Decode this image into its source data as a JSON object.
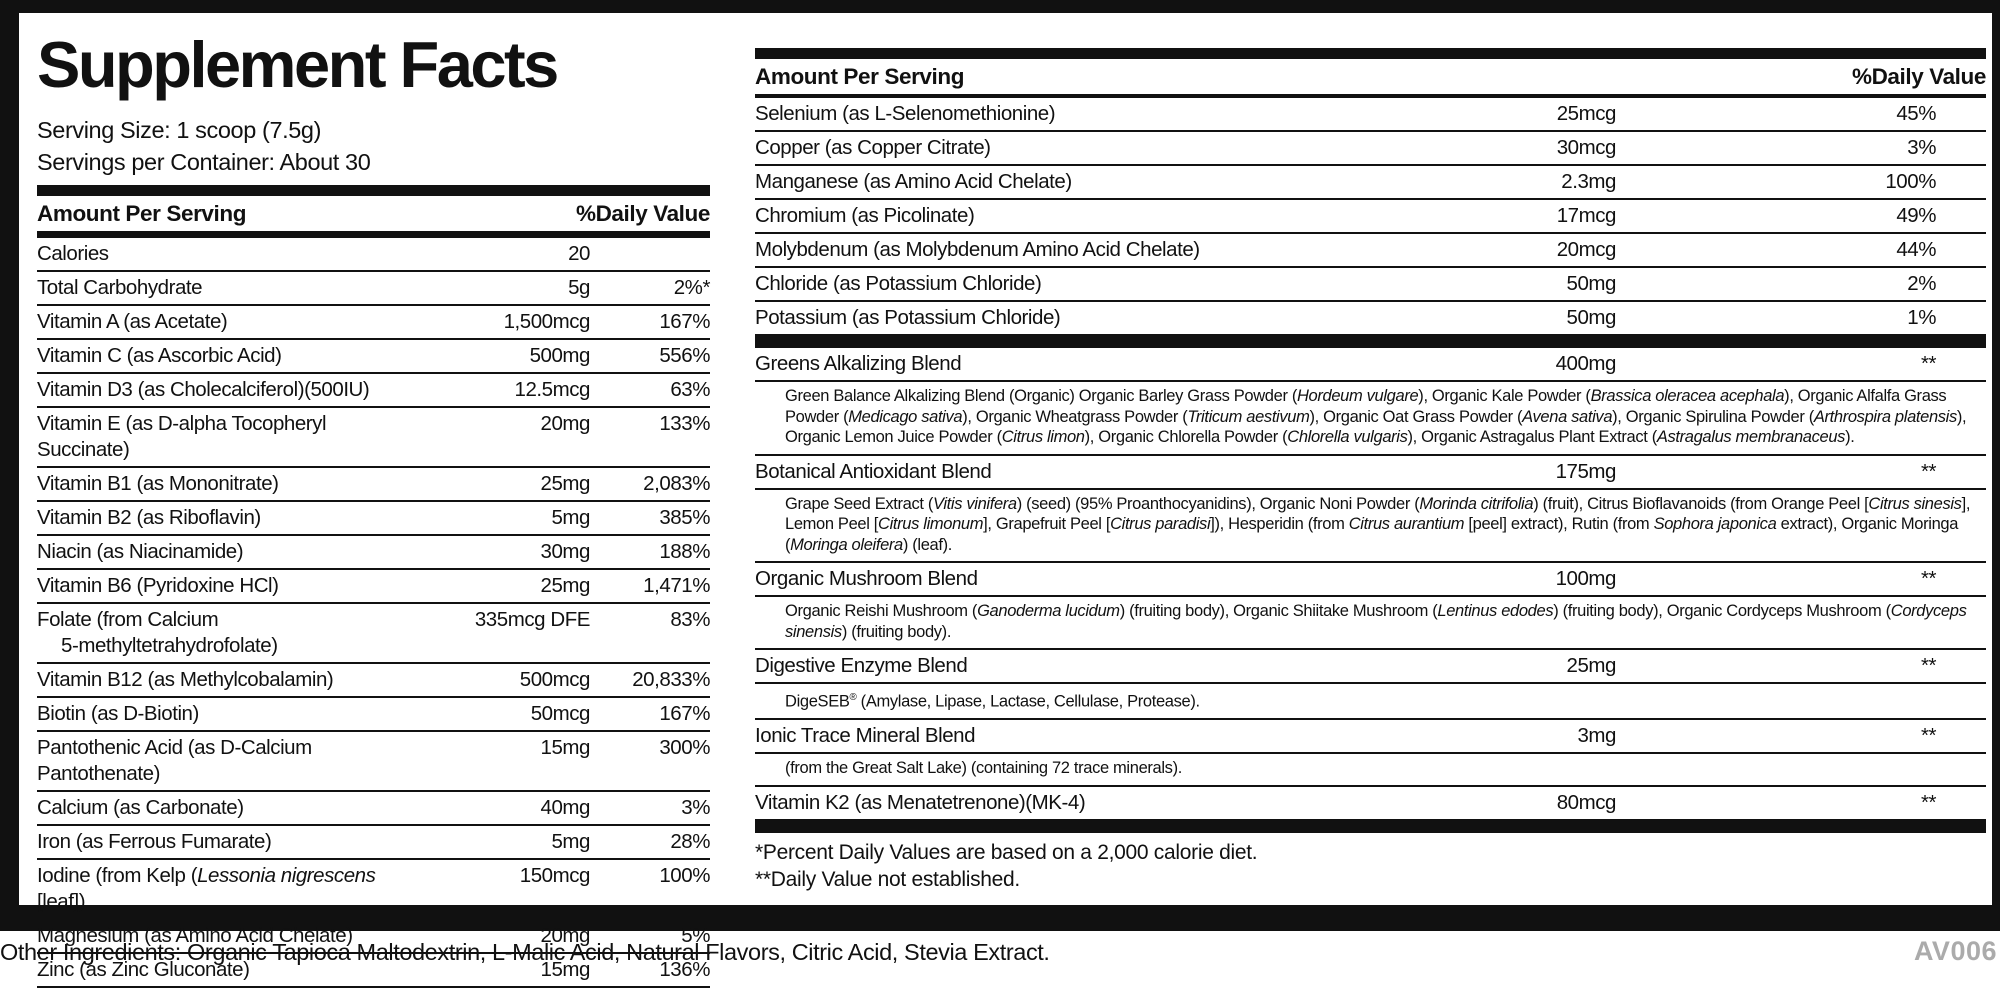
{
  "colors": {
    "ink": "#111111",
    "code_gray": "#8f8f8f",
    "background": "#ffffff"
  },
  "label": {
    "title": "Supplement Facts",
    "serving_size": "Serving Size: 1 scoop (7.5g)",
    "servings_per_container": "Servings per Container: About 30"
  },
  "table_headers": {
    "amount": "Amount Per Serving",
    "dv": "%Daily Value"
  },
  "left_table": {
    "rows": [
      {
        "name": "Calories",
        "amount": "20",
        "dv": ""
      },
      {
        "name": "Total Carbohydrate",
        "amount": "5g",
        "dv": "2%*"
      },
      {
        "name": "Vitamin A (as Acetate)",
        "amount": "1,500mcg",
        "dv": "167%"
      },
      {
        "name": "Vitamin C (as Ascorbic Acid)",
        "amount": "500mg",
        "dv": "556%"
      },
      {
        "name": "Vitamin D3 (as Cholecalciferol)(500IU)",
        "amount": "12.5mcg",
        "dv": "63%"
      },
      {
        "name": "Vitamin E (as D-alpha Tocopheryl Succinate)",
        "amount": "20mg",
        "dv": "133%"
      },
      {
        "name": "Vitamin B1 (as Mononitrate)",
        "amount": "25mg",
        "dv": "2,083%"
      },
      {
        "name": "Vitamin B2 (as Riboflavin)",
        "amount": "5mg",
        "dv": "385%"
      },
      {
        "name": "Niacin (as Niacinamide)",
        "amount": "30mg",
        "dv": "188%"
      },
      {
        "name": "Vitamin B6 (Pyridoxine HCl)",
        "amount": "25mg",
        "dv": "1,471%"
      },
      {
        "name": "Folate (from Calcium",
        "name_line2": "5-methyltetrahydrofolate)",
        "amount": "335mcg DFE",
        "dv": "83%"
      },
      {
        "name": "Vitamin B12 (as Methylcobalamin)",
        "amount": "500mcg",
        "dv": "20,833%"
      },
      {
        "name": "Biotin (as D-Biotin)",
        "amount": "50mcg",
        "dv": "167%"
      },
      {
        "name": "Pantothenic Acid (as D-Calcium Pantothenate)",
        "amount": "15mg",
        "dv": "300%"
      },
      {
        "name": "Calcium (as Carbonate)",
        "amount": "40mg",
        "dv": "3%"
      },
      {
        "name": "Iron (as Ferrous Fumarate)",
        "amount": "5mg",
        "dv": "28%"
      },
      {
        "name_rich": [
          [
            "Iodine (from Kelp (",
            0
          ],
          [
            "Lessonia nigrescens",
            1
          ],
          [
            " [leaf])",
            0
          ]
        ],
        "amount": "150mcg",
        "dv": "100%"
      },
      {
        "name": "Magnesium (as Amino Acid Chelate)",
        "amount": "20mg",
        "dv": "5%"
      },
      {
        "name": "Zinc (as Zinc Gluconate)",
        "amount": "15mg",
        "dv": "136%"
      }
    ]
  },
  "right_table": {
    "rows": [
      {
        "name": "Selenium (as L-Selenomethionine)",
        "amount": "25mcg",
        "dv": "45%"
      },
      {
        "name": "Copper (as Copper Citrate)",
        "amount": "30mcg",
        "dv": "3%"
      },
      {
        "name": "Manganese (as Amino Acid Chelate)",
        "amount": "2.3mg",
        "dv": "100%"
      },
      {
        "name": "Chromium (as Picolinate)",
        "amount": "17mcg",
        "dv": "49%"
      },
      {
        "name": "Molybdenum (as Molybdenum Amino Acid Chelate)",
        "amount": "20mcg",
        "dv": "44%"
      },
      {
        "name": "Chloride (as Potassium Chloride)",
        "amount": "50mg",
        "dv": "2%"
      },
      {
        "name": "Potassium (as Potassium Chloride)",
        "amount": "50mg",
        "dv": "1%"
      }
    ]
  },
  "blends": [
    {
      "name": "Greens Alkalizing Blend",
      "amount": "400mg",
      "dv": "**",
      "desc": [
        [
          "Green Balance Alkalizing Blend (Organic) Organic Barley Grass Powder (",
          0
        ],
        [
          "Hordeum vulgare",
          1
        ],
        [
          "), Organic Kale Powder (",
          0
        ],
        [
          "Brassica oleracea acephala",
          1
        ],
        [
          "), Organic Alfalfa Grass Powder (",
          0
        ],
        [
          "Medicago sativa",
          1
        ],
        [
          "), Organic Wheatgrass Powder (",
          0
        ],
        [
          "Triticum aestivum",
          1
        ],
        [
          "), Organic Oat Grass Powder (",
          0
        ],
        [
          "Avena sativa",
          1
        ],
        [
          "), Organic Spirulina Powder (",
          0
        ],
        [
          "Arthrospira platensis",
          1
        ],
        [
          "), Organic Lemon Juice Powder (",
          0
        ],
        [
          "Citrus limon",
          1
        ],
        [
          "), Organic Chlorella Powder (",
          0
        ],
        [
          "Chlorella vulgaris",
          1
        ],
        [
          "), Organic Astragalus Plant Extract (",
          0
        ],
        [
          "Astragalus membranaceus",
          1
        ],
        [
          ").",
          0
        ]
      ]
    },
    {
      "name": "Botanical Antioxidant Blend",
      "amount": "175mg",
      "dv": "**",
      "desc": [
        [
          "Grape Seed Extract (",
          0
        ],
        [
          "Vitis vinifera",
          1
        ],
        [
          ") (seed) (95% Proanthocyanidins), Organic Noni Powder (",
          0
        ],
        [
          "Morinda citrifolia",
          1
        ],
        [
          ") (fruit), Citrus Bioflavanoids (from Orange Peel [",
          0
        ],
        [
          "Citrus sinesis",
          1
        ],
        [
          "], Lemon Peel [",
          0
        ],
        [
          "Citrus limonum",
          1
        ],
        [
          "], Grapefruit Peel [",
          0
        ],
        [
          "Citrus paradisi",
          1
        ],
        [
          "]), Hesperidin (from ",
          0
        ],
        [
          "Citrus aurantium",
          1
        ],
        [
          " [peel] extract), Rutin (from ",
          0
        ],
        [
          "Sophora japonica",
          1
        ],
        [
          " extract), Organic Moringa (",
          0
        ],
        [
          "Moringa oleifera",
          1
        ],
        [
          ") (leaf).",
          0
        ]
      ]
    },
    {
      "name": "Organic Mushroom Blend",
      "amount": "100mg",
      "dv": "**",
      "desc": [
        [
          "Organic Reishi Mushroom (",
          0
        ],
        [
          "Ganoderma lucidum",
          1
        ],
        [
          ") (fruiting body), Organic Shiitake Mushroom (",
          0
        ],
        [
          "Lentinus edodes",
          1
        ],
        [
          ") (fruiting body), Organic Cordyceps Mushroom (",
          0
        ],
        [
          "Cordyceps sinensis",
          1
        ],
        [
          ") (fruiting body).",
          0
        ]
      ]
    },
    {
      "name": "Digestive Enzyme Blend",
      "amount": "25mg",
      "dv": "**",
      "desc": [
        [
          "DigeSEB",
          0
        ],
        [
          "®",
          2
        ],
        [
          " (Amylase, Lipase, Lactase, Cellulase, Protease).",
          0
        ]
      ]
    },
    {
      "name": "Ionic Trace Mineral Blend",
      "amount": "3mg",
      "dv": "**",
      "desc": [
        [
          "(from the Great Salt Lake) (containing 72 trace minerals).",
          0
        ]
      ]
    },
    {
      "name": "Vitamin K2 (as Menatetrenone)(MK-4)",
      "amount": "80mcg",
      "dv": "**"
    }
  ],
  "footnotes": {
    "single": "*Percent Daily Values are based on a 2,000 calorie diet.",
    "double": "**Daily Value not established."
  },
  "footer": {
    "other_ingredients": "Other Ingredients: Organic Tapioca Maltodextrin, L-Malic Acid, Natural Flavors, Citric Acid, Stevia Extract.",
    "code": "AV006"
  }
}
